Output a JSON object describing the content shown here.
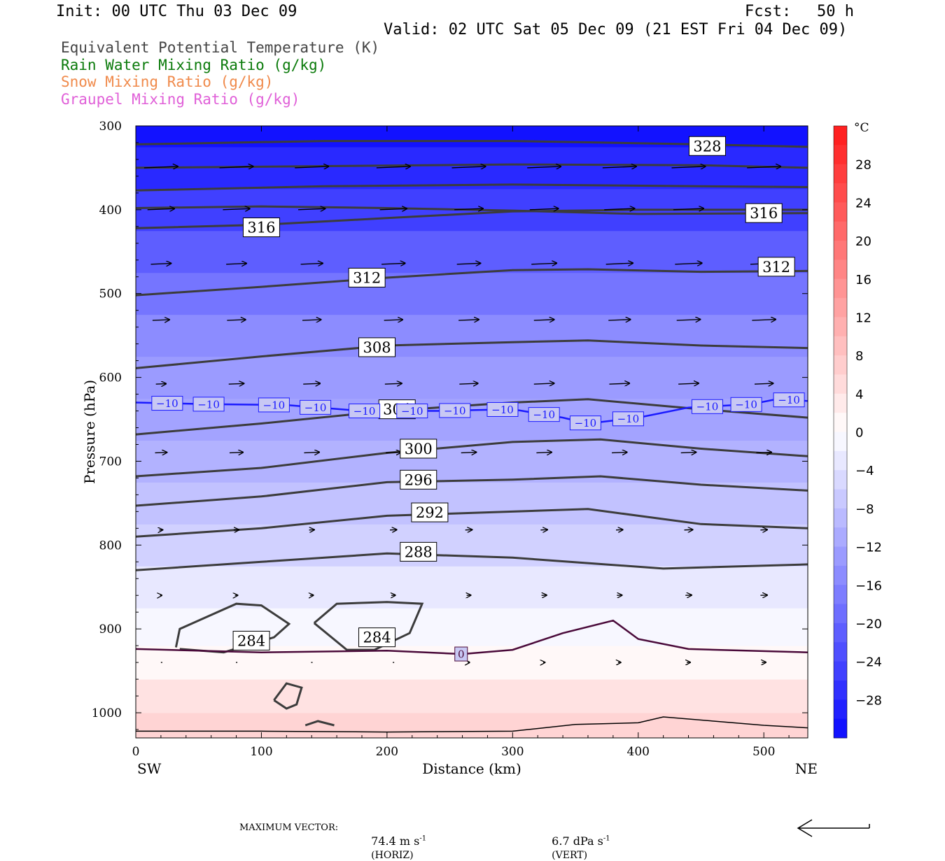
{
  "header": {
    "init": "Init: 00 UTC Thu 03 Dec 09",
    "fcst_label": "Fcst:",
    "fcst_value": "50 h",
    "valid": "Valid: 02 UTC Sat 05 Dec 09 (21 EST Fri 04 Dec 09)"
  },
  "legend": [
    {
      "text": "Equivalent Potential Temperature (K)",
      "color": "#444444"
    },
    {
      "text": "Rain Water Mixing Ratio (g/kg)",
      "color": "#0a7a0a"
    },
    {
      "text": "Snow Mixing Ratio (g/kg)",
      "color": "#f08a4b"
    },
    {
      "text": "Graupel Mixing Ratio (g/kg)",
      "color": "#e060d8"
    }
  ],
  "footer": {
    "max_vector_label": "MAXIMUM VECTOR:",
    "horiz_value": "74.4 m s",
    "horiz_unit_sup": "-1",
    "horiz_tag": "(HORIZ)",
    "vert_value": "6.7 dPa s",
    "vert_unit_sup": "-1",
    "vert_tag": "(VERT)"
  },
  "chart_data": {
    "type": "contour",
    "xlabel": "Distance (km)",
    "ylabel": "Pressure (hPa)",
    "xlim": [
      0,
      535
    ],
    "ylim": [
      1030,
      300
    ],
    "y_scale": "linear, pressure decreasing upward",
    "x_ticks": [
      0,
      100,
      200,
      300,
      400,
      500
    ],
    "y_ticks": [
      300,
      400,
      500,
      600,
      700,
      800,
      900,
      1000
    ],
    "x_end_labels": {
      "left": "SW",
      "right": "NE"
    },
    "colorbar": {
      "unit": "°C",
      "ticks": [
        28,
        24,
        20,
        16,
        12,
        8,
        4,
        0,
        -4,
        -8,
        -12,
        -16,
        -20,
        -24,
        -28
      ],
      "tick_labels": [
        "28",
        "24",
        "20",
        "16",
        "12",
        "8",
        "4",
        "0",
        "−4",
        "−8",
        "−12",
        "−16",
        "−20",
        "−24",
        "−28"
      ],
      "range": [
        -32,
        32
      ],
      "step": 2,
      "warm_color": "#ff1a1a",
      "cold_color": "#0a0aff",
      "neutral_color": "#ffffff"
    },
    "temperature_fill_levels": [
      {
        "p": 1020,
        "t": 6
      },
      {
        "p": 980,
        "t": 4
      },
      {
        "p": 940,
        "t": 1
      },
      {
        "p": 900,
        "t": -1
      },
      {
        "p": 850,
        "t": -3
      },
      {
        "p": 800,
        "t": -6
      },
      {
        "p": 750,
        "t": -8
      },
      {
        "p": 700,
        "t": -10
      },
      {
        "p": 650,
        "t": -12
      },
      {
        "p": 600,
        "t": -13
      },
      {
        "p": 550,
        "t": -15
      },
      {
        "p": 500,
        "t": -18
      },
      {
        "p": 450,
        "t": -21
      },
      {
        "p": 400,
        "t": -25
      },
      {
        "p": 350,
        "t": -28
      },
      {
        "p": 300,
        "t": -31
      }
    ],
    "theta_e_contours": [
      {
        "label": "328",
        "label_at": [
          455,
          324
        ],
        "points": [
          [
            0,
            322
          ],
          [
            150,
            318
          ],
          [
            300,
            318
          ],
          [
            450,
            322
          ],
          [
            535,
            325
          ]
        ]
      },
      {
        "label": "",
        "label_at": null,
        "points": [
          [
            0,
            350
          ],
          [
            150,
            348
          ],
          [
            300,
            346
          ],
          [
            450,
            347
          ],
          [
            535,
            350
          ]
        ]
      },
      {
        "label": "",
        "label_at": null,
        "points": [
          [
            0,
            377
          ],
          [
            150,
            372
          ],
          [
            300,
            370
          ],
          [
            450,
            372
          ],
          [
            535,
            373
          ]
        ]
      },
      {
        "label": "316",
        "label_at": [
          100,
          421
        ],
        "points": [
          [
            0,
            422
          ],
          [
            100,
            418
          ],
          [
            200,
            410
          ],
          [
            300,
            402
          ],
          [
            400,
            400
          ],
          [
            535,
            400
          ]
        ]
      },
      {
        "label": "316",
        "label_at": [
          500,
          404
        ],
        "points": [
          [
            0,
            398
          ],
          [
            100,
            396
          ],
          [
            200,
            398
          ],
          [
            300,
            401
          ],
          [
            400,
            405
          ],
          [
            535,
            404
          ]
        ]
      },
      {
        "label": "312",
        "label_at": [
          184,
          481
        ],
        "points": [
          [
            0,
            502
          ],
          [
            100,
            492
          ],
          [
            200,
            481
          ],
          [
            300,
            472
          ],
          [
            360,
            471
          ],
          [
            450,
            474
          ],
          [
            535,
            473
          ]
        ]
      },
      {
        "label": "312",
        "label_at": [
          510,
          468
        ],
        "points": [
          [
            0,
            0
          ],
          [
            0,
            0
          ]
        ]
      },
      {
        "label": "308",
        "label_at": [
          192,
          564
        ],
        "points": [
          [
            0,
            589
          ],
          [
            100,
            575
          ],
          [
            200,
            562
          ],
          [
            300,
            558
          ],
          [
            360,
            556
          ],
          [
            450,
            562
          ],
          [
            535,
            565
          ]
        ]
      },
      {
        "label": "304",
        "label_at": [
          208,
          638
        ],
        "points": [
          [
            0,
            668
          ],
          [
            100,
            655
          ],
          [
            200,
            640
          ],
          [
            300,
            630
          ],
          [
            360,
            626
          ],
          [
            450,
            638
          ],
          [
            535,
            648
          ]
        ]
      },
      {
        "label": "300",
        "label_at": [
          225,
          685
        ],
        "points": [
          [
            0,
            718
          ],
          [
            100,
            708
          ],
          [
            200,
            690
          ],
          [
            300,
            677
          ],
          [
            370,
            674
          ],
          [
            450,
            685
          ],
          [
            535,
            694
          ]
        ]
      },
      {
        "label": "296",
        "label_at": [
          225,
          722
        ],
        "points": [
          [
            0,
            753
          ],
          [
            100,
            742
          ],
          [
            200,
            725
          ],
          [
            300,
            722
          ],
          [
            370,
            718
          ],
          [
            450,
            728
          ],
          [
            535,
            735
          ]
        ]
      },
      {
        "label": "292",
        "label_at": [
          234,
          761
        ],
        "points": [
          [
            0,
            790
          ],
          [
            100,
            780
          ],
          [
            200,
            765
          ],
          [
            300,
            760
          ],
          [
            360,
            757
          ],
          [
            450,
            775
          ],
          [
            535,
            780
          ]
        ]
      },
      {
        "label": "288",
        "label_at": [
          225,
          808
        ],
        "points": [
          [
            0,
            830
          ],
          [
            100,
            820
          ],
          [
            200,
            810
          ],
          [
            300,
            815
          ],
          [
            420,
            828
          ],
          [
            535,
            823
          ]
        ]
      },
      {
        "label": "284",
        "label_at": [
          92,
          914
        ],
        "points": [
          [
            32,
            922
          ],
          [
            35,
            900
          ],
          [
            80,
            870
          ],
          [
            100,
            872
          ],
          [
            122,
            894
          ],
          [
            110,
            910
          ],
          [
            70,
            928
          ],
          [
            35,
            924
          ]
        ]
      },
      {
        "label": "284",
        "label_at": [
          192,
          910
        ],
        "points": [
          [
            142,
            893
          ],
          [
            160,
            870
          ],
          [
            200,
            868
          ],
          [
            228,
            870
          ],
          [
            218,
            905
          ],
          [
            190,
            925
          ],
          [
            168,
            925
          ],
          [
            142,
            893
          ]
        ]
      },
      {
        "label": "",
        "label_at": null,
        "points": [
          [
            110,
            985
          ],
          [
            120,
            965
          ],
          [
            132,
            970
          ],
          [
            128,
            990
          ],
          [
            120,
            995
          ],
          [
            110,
            985
          ]
        ]
      },
      {
        "label": "",
        "label_at": null,
        "points": [
          [
            135,
            1015
          ],
          [
            145,
            1010
          ],
          [
            158,
            1015
          ]
        ]
      }
    ],
    "isotherms": [
      {
        "label": "−10",
        "color": "#1a1aff",
        "labels_x": [
          25,
          58,
          110,
          143,
          182,
          220,
          254,
          292,
          325,
          358,
          392,
          455,
          486,
          520
        ],
        "points": [
          [
            0,
            630
          ],
          [
            60,
            632
          ],
          [
            120,
            633
          ],
          [
            180,
            640
          ],
          [
            240,
            640
          ],
          [
            300,
            638
          ],
          [
            340,
            648
          ],
          [
            360,
            655
          ],
          [
            400,
            648
          ],
          [
            440,
            636
          ],
          [
            490,
            632
          ],
          [
            510,
            626
          ],
          [
            535,
            628
          ]
        ]
      },
      {
        "label": "0",
        "color": "#4a0a3a",
        "labels_x": [
          259
        ],
        "points": [
          [
            0,
            924
          ],
          [
            100,
            928
          ],
          [
            200,
            926
          ],
          [
            260,
            930
          ],
          [
            300,
            925
          ],
          [
            340,
            905
          ],
          [
            380,
            890
          ],
          [
            400,
            912
          ],
          [
            440,
            924
          ],
          [
            535,
            928
          ]
        ]
      }
    ],
    "terrain": {
      "points": [
        [
          0,
          1022
        ],
        [
          100,
          1022
        ],
        [
          200,
          1023
        ],
        [
          300,
          1022
        ],
        [
          350,
          1014
        ],
        [
          400,
          1012
        ],
        [
          420,
          1005
        ],
        [
          460,
          1010
        ],
        [
          500,
          1015
        ],
        [
          535,
          1018
        ]
      ]
    },
    "wind_vectors": {
      "levels_hpa": [
        350,
        400,
        465,
        532,
        608,
        690,
        782,
        860,
        940
      ],
      "x_km": [
        20,
        80,
        140,
        205,
        265,
        325,
        385,
        440,
        500
      ],
      "u_relative": [
        [
          1.0,
          1.0,
          1.0,
          1.0,
          1.0,
          1.0,
          1.0,
          1.0,
          1.0
        ],
        [
          0.8,
          0.8,
          0.8,
          0.8,
          0.85,
          0.85,
          0.9,
          0.9,
          0.9
        ],
        [
          0.6,
          0.6,
          0.65,
          0.7,
          0.7,
          0.75,
          0.8,
          0.8,
          0.8
        ],
        [
          0.5,
          0.55,
          0.55,
          0.55,
          0.6,
          0.6,
          0.65,
          0.7,
          0.7
        ],
        [
          0.3,
          0.45,
          0.5,
          0.5,
          0.55,
          0.6,
          0.6,
          0.6,
          0.55
        ],
        [
          0.35,
          0.4,
          0.45,
          0.45,
          0.45,
          0.45,
          0.45,
          0.45,
          0.45
        ],
        [
          0.1,
          0.15,
          0.15,
          0.2,
          0.2,
          0.2,
          0.2,
          0.25,
          0.2
        ],
        [
          0.05,
          0.08,
          0.1,
          0.12,
          0.12,
          0.15,
          0.15,
          0.18,
          0.2
        ],
        [
          0.0,
          0.02,
          0.03,
          0.03,
          0.05,
          0.05,
          0.08,
          0.1,
          0.12
        ]
      ]
    }
  }
}
